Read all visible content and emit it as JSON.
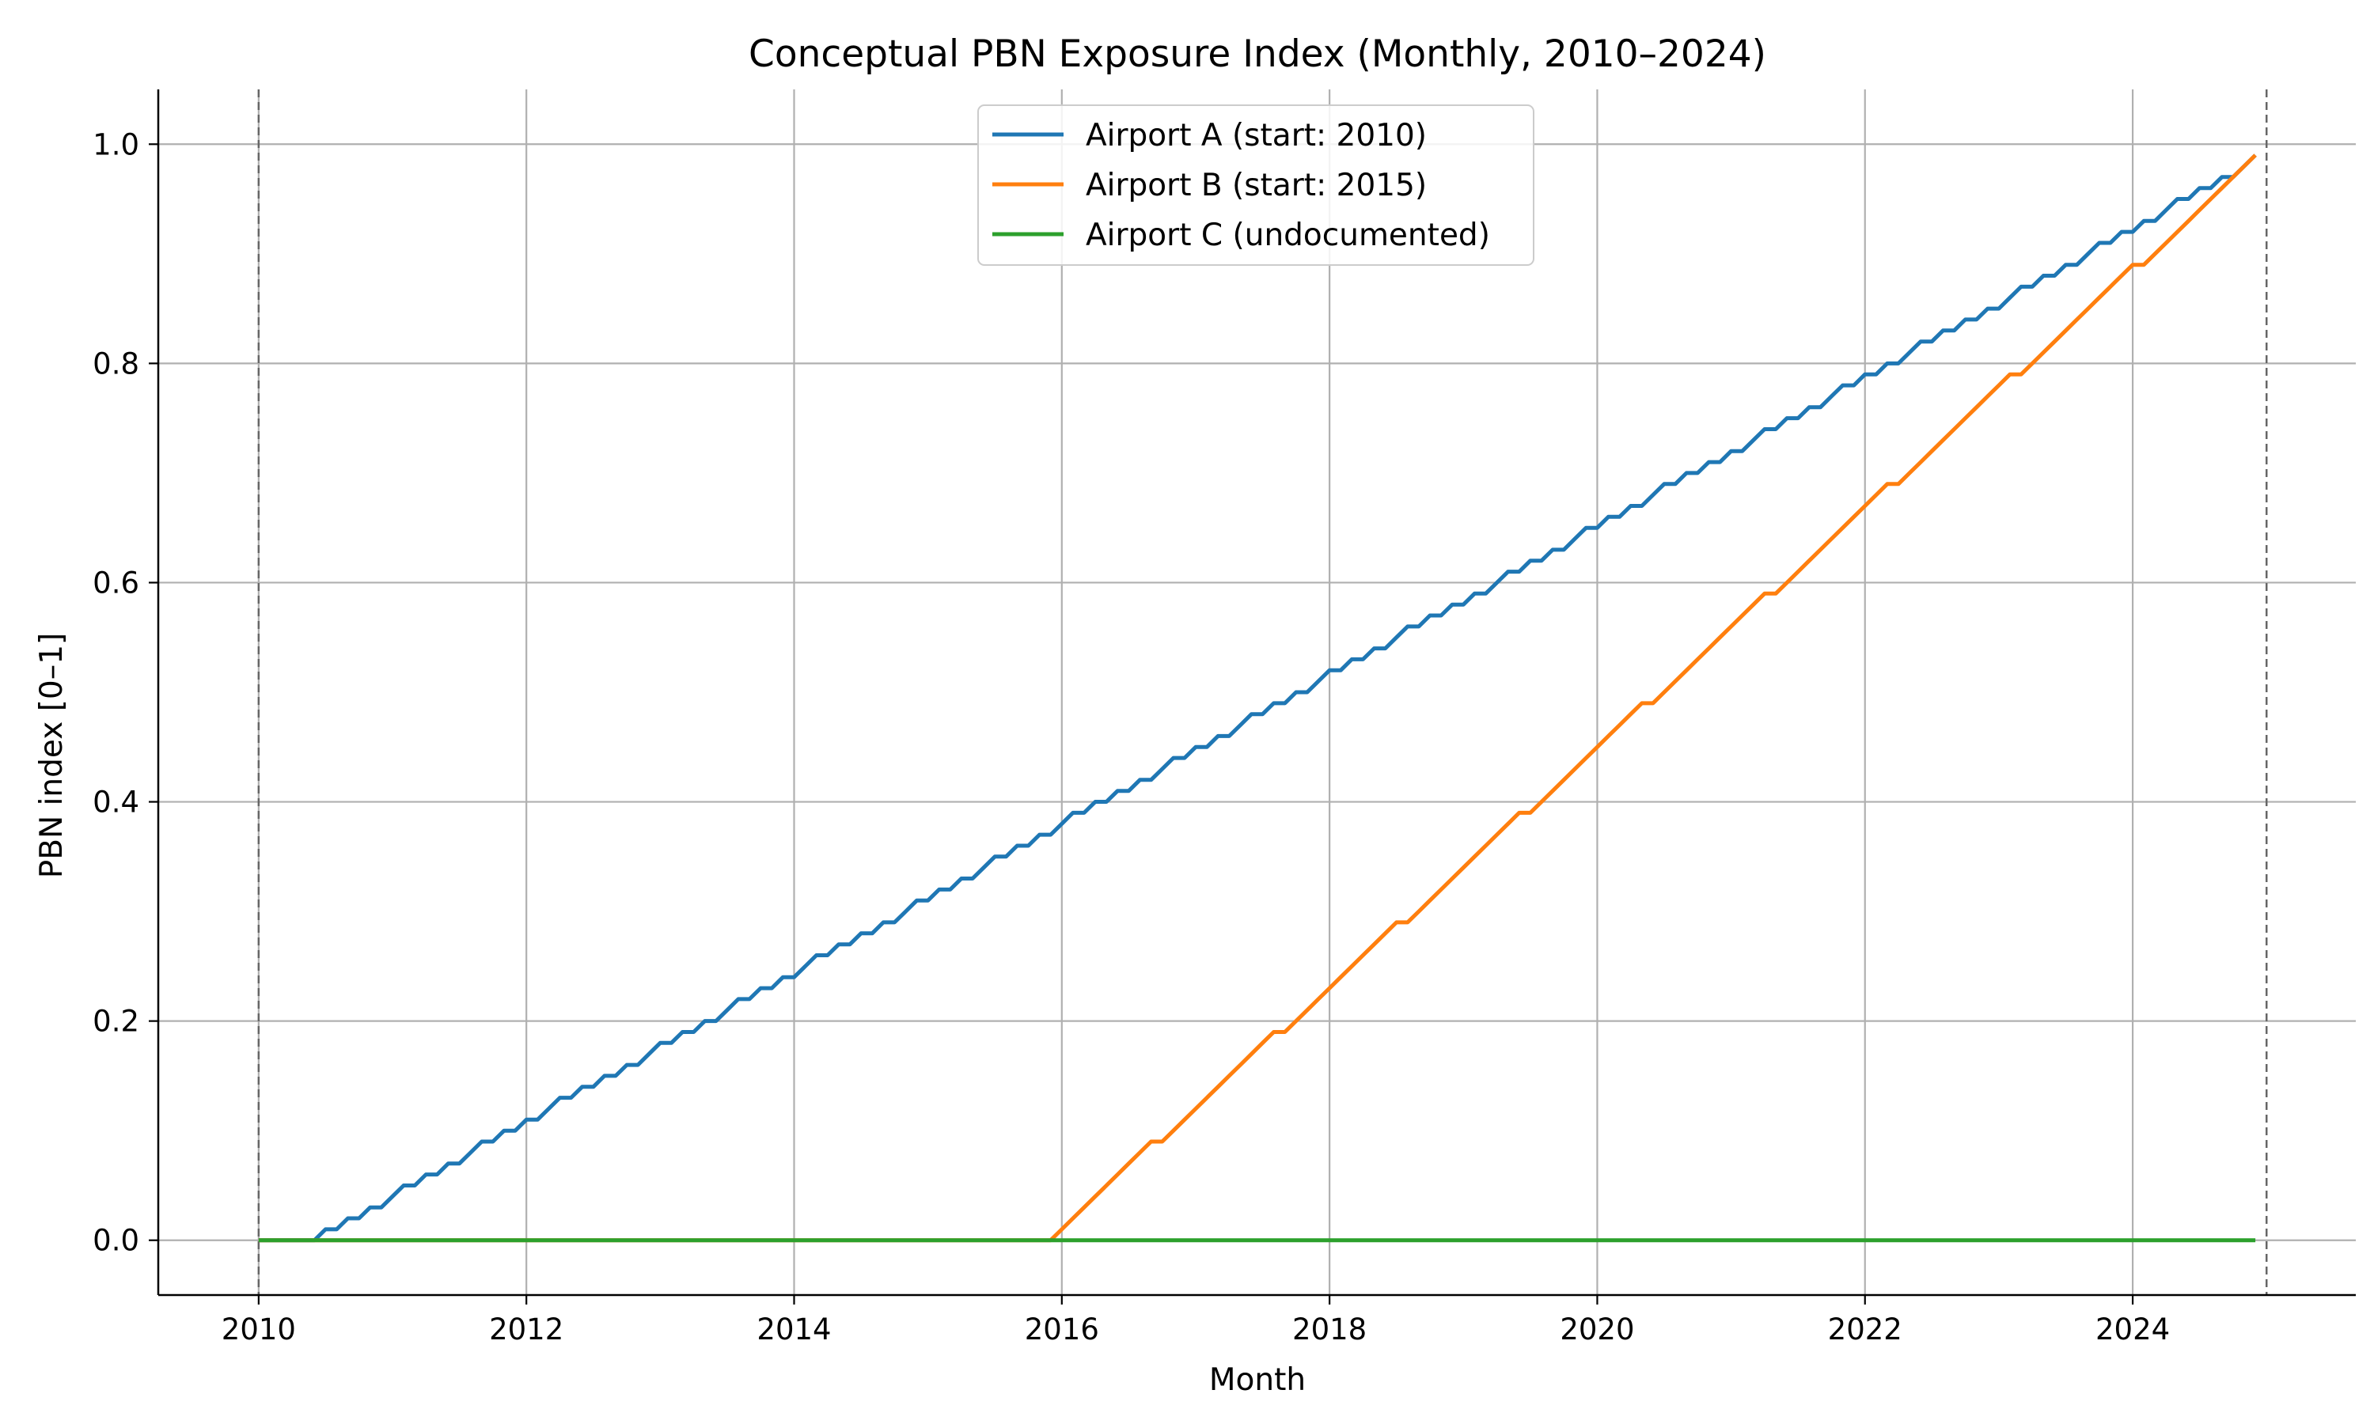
{
  "chart_data": {
    "type": "line",
    "title": "Conceptual PBN Exposure Index (Monthly, 2010–2024)",
    "xlabel": "Month",
    "ylabel": "PBN index [0–1]",
    "xlim": [
      "2009-04",
      "2025-09"
    ],
    "ylim": [
      -0.05,
      1.05
    ],
    "x_ticks": [
      "2010",
      "2012",
      "2014",
      "2016",
      "2018",
      "2020",
      "2022",
      "2024"
    ],
    "y_ticks": [
      "0.0",
      "0.2",
      "0.4",
      "0.6",
      "0.8",
      "1.0"
    ],
    "grid": true,
    "legend_position": "upper center",
    "reference_lines": [
      "2010-01",
      "2025-01"
    ],
    "series": [
      {
        "name": "Airport A (start: 2010)",
        "color": "#1f77b4",
        "start": "2010-01",
        "end": "2024-12",
        "points": [
          [
            "2010-01",
            0.0
          ],
          [
            "2010-05",
            0.0
          ],
          [
            "2024-12",
            0.99
          ]
        ]
      },
      {
        "name": "Airport B (start: 2015)",
        "color": "#ff7f0e",
        "start": "2010-01",
        "end": "2024-12",
        "points": [
          [
            "2010-01",
            0.0
          ],
          [
            "2015-11",
            0.0
          ],
          [
            "2024-12",
            0.99
          ]
        ]
      },
      {
        "name": "Airport C (undocumented)",
        "color": "#2ca02c",
        "start": "2010-01",
        "end": "2024-12",
        "points": [
          [
            "2010-01",
            0.0
          ],
          [
            "2024-12",
            0.0
          ]
        ]
      }
    ]
  }
}
